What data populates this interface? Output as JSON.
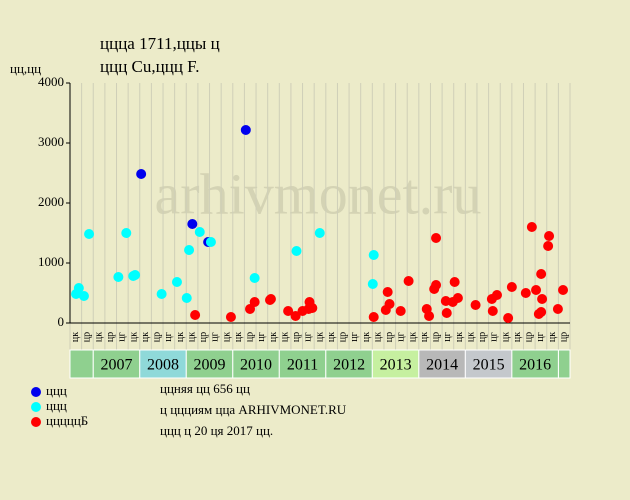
{
  "chart_data": {
    "type": "scatter",
    "title": "ццца 1711,ццы ц",
    "subtitle": "ццц Cu,ццц F.",
    "ylabel": "цц,цц",
    "watermark": "arhivmonet.ru",
    "footer": [
      "ццняя цц 656 цц",
      "ц ццциям цца ARHIVMONET.RU",
      "ццц ц 20 ця 2017 цц."
    ],
    "xlim": [
      2006.5,
      2017.25
    ],
    "ylim": [
      0,
      4000
    ],
    "yticks": [
      0,
      1000,
      2000,
      3000,
      4000
    ],
    "quarter_labels": [
      "цк",
      "цр",
      "цк",
      "цр",
      "цг",
      "цк",
      "цк",
      "цр",
      "цг",
      "цк",
      "цк",
      "цр",
      "цг",
      "цк",
      "цк",
      "цр",
      "цг",
      "цк",
      "цк",
      "цр",
      "цг",
      "цк",
      "цк",
      "цр",
      "цг",
      "цк",
      "цк",
      "цр",
      "цг",
      "цк",
      "цк",
      "цр",
      "цг",
      "цк",
      "цк",
      "цр",
      "цг",
      "цк",
      "цк",
      "цр",
      "цг",
      "цк",
      "цр"
    ],
    "years": [
      "2007",
      "2008",
      "2009",
      "2010",
      "2011",
      "2012",
      "2013",
      "2014",
      "2015",
      "2016"
    ],
    "year_colors": [
      "#8fd08f",
      "#8fd9d9",
      "#8fd08f",
      "#8fd08f",
      "#8fd08f",
      "#8fd08f",
      "#c6f0a0",
      "#b8b8b8",
      "#c4c8cc",
      "#8fd08f"
    ],
    "edge_color": "#8fd08f",
    "series": [
      {
        "name": "ццц",
        "color": "#0000ee",
        "x": [
          2008.03,
          2009.13,
          2009.47,
          2010.28
        ],
        "values": [
          2483,
          1650,
          1350,
          3217
        ]
      },
      {
        "name": "ццц",
        "color": "#00ffff",
        "x": [
          2006.63,
          2006.69,
          2006.8,
          2006.91,
          2007.54,
          2007.71,
          2007.86,
          2007.9,
          2008.47,
          2008.8,
          2009.01,
          2009.06,
          2009.29,
          2009.53,
          2010.47,
          2011.37,
          2011.87,
          2013.01,
          2013.03
        ],
        "values": [
          483,
          583,
          450,
          1483,
          767,
          1500,
          783,
          800,
          483,
          683,
          417,
          1217,
          1517,
          1350,
          750,
          1200,
          1500,
          650,
          1133
        ]
      },
      {
        "name": "цццццБ",
        "color": "#ff0000",
        "x": [
          2009.19,
          2009.96,
          2010.37,
          2010.47,
          2010.8,
          2010.82,
          2011.19,
          2011.35,
          2011.5,
          2011.63,
          2011.65,
          2011.71,
          2013.03,
          2013.29,
          2013.33,
          2013.37,
          2013.61,
          2013.78,
          2014.17,
          2014.22,
          2014.37,
          2014.33,
          2014.37,
          2014.58,
          2014.6,
          2014.73,
          2014.77,
          2014.84,
          2015.22,
          2015.57,
          2015.59,
          2015.68,
          2015.92,
          2016.0,
          2016.3,
          2016.43,
          2016.52,
          2016.58,
          2016.63,
          2016.63,
          2016.65,
          2016.78,
          2016.8,
          2016.99,
          2017.1
        ],
        "values": [
          133,
          100,
          233,
          350,
          383,
          400,
          200,
          117,
          200,
          233,
          350,
          250,
          100,
          217,
          517,
          317,
          200,
          700,
          233,
          117,
          1417,
          567,
          633,
          367,
          167,
          350,
          683,
          417,
          300,
          400,
          200,
          467,
          83,
          600,
          500,
          1600,
          550,
          150,
          183,
          817,
          400,
          1283,
          1450,
          233,
          550
        ]
      }
    ]
  }
}
